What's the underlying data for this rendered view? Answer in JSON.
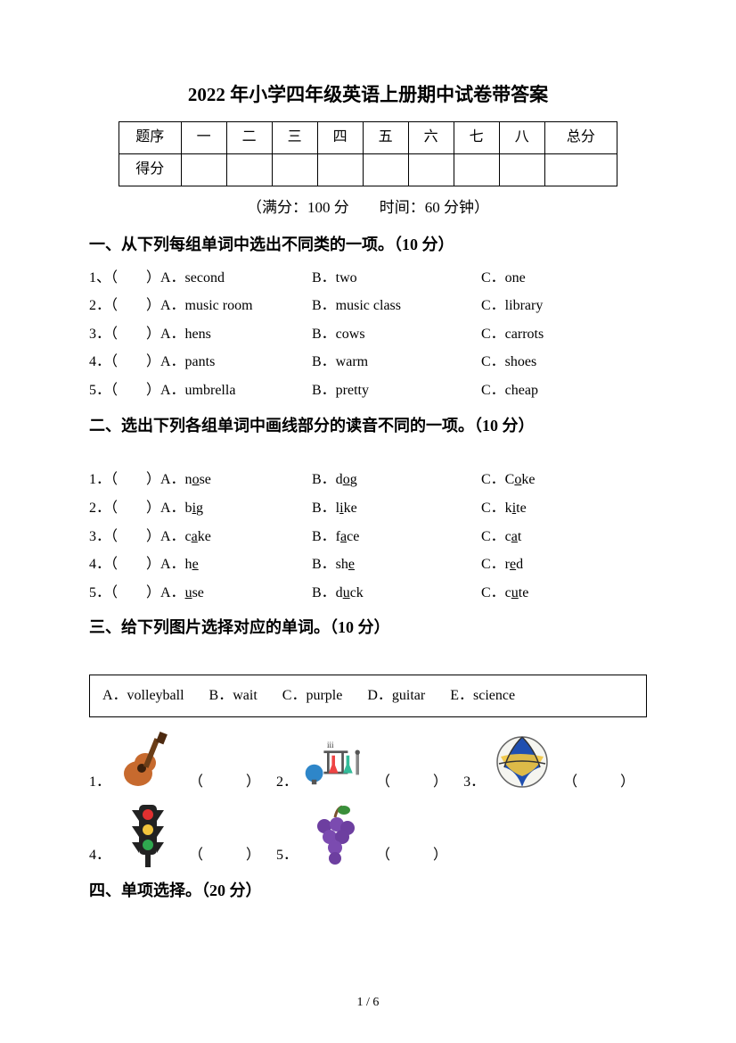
{
  "title": "2022 年小学四年级英语上册期中试卷带答案",
  "scoreTable": {
    "rowLabels": [
      "题序",
      "得分"
    ],
    "cols": [
      "一",
      "二",
      "三",
      "四",
      "五",
      "六",
      "七",
      "八"
    ],
    "total": "总分"
  },
  "meta": "（满分：100 分　　时间：60 分钟）",
  "section1": {
    "heading": "一、从下列每组单词中选出不同类的一项。（10 分）",
    "rows": [
      {
        "n": "1、（　　）A．second",
        "b": "B．two",
        "c": "C．one"
      },
      {
        "n": "2．（　　）A．music room",
        "b": "B．music class",
        "c": "C．library"
      },
      {
        "n": "3．（　　）A．hens",
        "b": "B．cows",
        "c": "C．carrots"
      },
      {
        "n": "4．（　　）A．pants",
        "b": "B．warm",
        "c": "C．shoes"
      },
      {
        "n": "5．（　　）A．umbrella",
        "b": "B．pretty",
        "c": "C．cheap"
      }
    ]
  },
  "section2": {
    "heading": "二、选出下列各组单词中画线部分的读音不同的一项。（10 分）",
    "rows": [
      {
        "n": "1．（　　）A．n",
        "au": "o",
        "apost": "se",
        "b": "B．d",
        "bu": "o",
        "bpost": "g",
        "c": "C．C",
        "cu": "o",
        "cpost": "ke"
      },
      {
        "n": "2．（　　）A．b",
        "au": "i",
        "apost": "g",
        "b": "B．l",
        "bu": "i",
        "bpost": "ke",
        "c": "C．k",
        "cu": "i",
        "cpost": "te"
      },
      {
        "n": "3．（　　）A．c",
        "au": "a",
        "apost": "ke",
        "b": "B．f",
        "bu": "a",
        "bpost": "ce",
        "c": "C．c",
        "cu": "a",
        "cpost": "t"
      },
      {
        "n": "4．（　　）A．h",
        "au": "e",
        "apost": "",
        "b": "B．sh",
        "bu": "e",
        "bpost": "",
        "c": "C．r",
        "cu": "e",
        "cpost": "d"
      },
      {
        "n": "5．（　　）A．",
        "au": "u",
        "apost": "se",
        "b": "B．d",
        "bu": "u",
        "bpost": "ck",
        "c": "C．c",
        "cu": "u",
        "cpost": "te"
      }
    ]
  },
  "section3": {
    "heading": "三、给下列图片选择对应的单词。（10 分）",
    "options": [
      "A．volleyball",
      "B．wait",
      "C．purple",
      "D．guitar",
      "E．science"
    ],
    "items": [
      {
        "n": "1．",
        "icon": "guitar",
        "blank": "（　　　）"
      },
      {
        "n": "2．",
        "icon": "science",
        "blank": "（　　　）"
      },
      {
        "n": "3．",
        "icon": "volleyball",
        "blank": "（　　　）"
      },
      {
        "n": "4．",
        "icon": "trafficlight",
        "blank": "（　　　）"
      },
      {
        "n": "5．",
        "icon": "grapes",
        "blank": "（　　　）"
      }
    ]
  },
  "section4": {
    "heading": "四、单项选择。（20 分）"
  },
  "pageNum": "1 / 6",
  "iconColors": {
    "guitar_body": "#c76a2e",
    "guitar_neck": "#6b3d17",
    "globe": "#2e86c9",
    "flask1": "#e44",
    "flask2": "#3b9",
    "stand": "#555",
    "vb_blue": "#1f4fb0",
    "vb_yellow": "#f2c53d",
    "vb_white": "#f5f5f0",
    "tl_body": "#222",
    "tl_red": "#e03030",
    "tl_yellow": "#f2c53d",
    "tl_green": "#2fa84f",
    "grape": "#6d3fa0",
    "leaf": "#3a8f3a",
    "stem": "#7a5230"
  }
}
